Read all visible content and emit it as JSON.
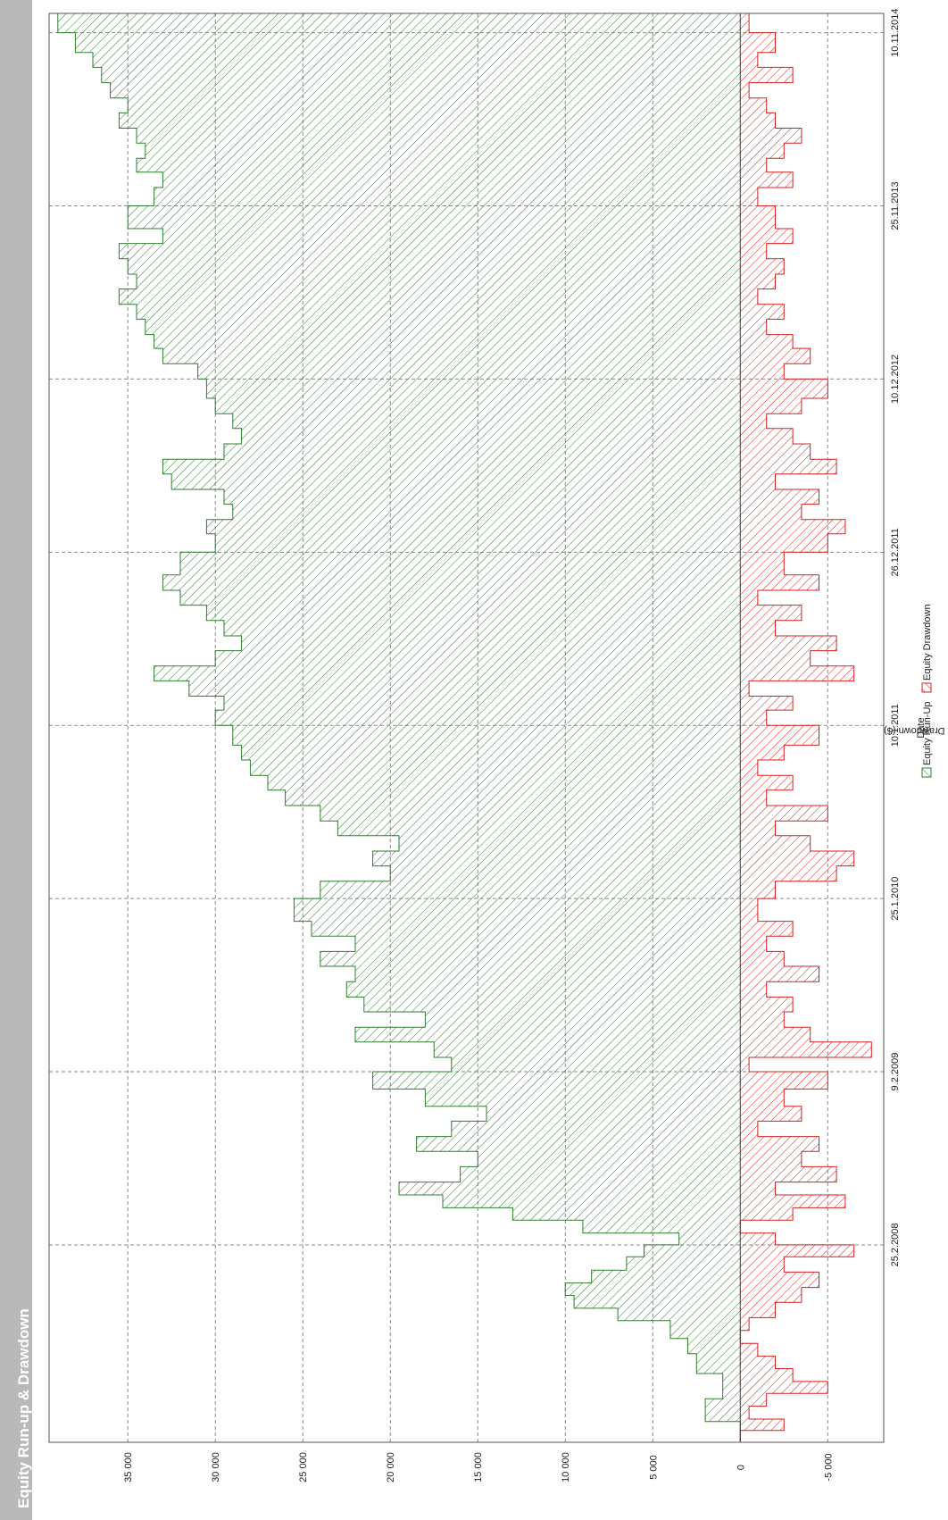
{
  "header": {
    "title": "Equity Run-up & Drawdown"
  },
  "chart_data": {
    "type": "area",
    "title": "Equity Run-up & Drawdown",
    "xlabel": "Date",
    "ylabel": "Run-Up & Drawdown ($)",
    "ylim": [
      -8200,
      39500
    ],
    "yticks": [
      -5000,
      0,
      5000,
      10000,
      15000,
      20000,
      25000,
      30000,
      35000
    ],
    "ytick_labels": [
      "-5 000",
      "0",
      "5 000",
      "10 000",
      "15 000",
      "20 000",
      "25 000",
      "30 000",
      "35 000"
    ],
    "xlim": [
      "2007-01-22",
      "2014-12-19"
    ],
    "xticks": [
      "2008-02-25",
      "2009-02-09",
      "2010-01-25",
      "2011-01-10",
      "2011-12-26",
      "2012-12-10",
      "2013-11-25",
      "2014-11-10"
    ],
    "xtick_labels": [
      "25.2.2008",
      "9.2.2009",
      "25.1.2010",
      "10.1.2011",
      "26.12.2011",
      "10.12.2012",
      "25.11.2013",
      "10.11.2014"
    ],
    "grid": true,
    "orientation": "rotated-90-ccw",
    "legend": {
      "position": "bottom",
      "entries": [
        "Equity Run-Up",
        "Equity Drawdown"
      ]
    },
    "colors": {
      "runup": "#2e7d2e",
      "drawdown": "#d42020",
      "grid": "#8a8a8a"
    },
    "series": [
      {
        "name": "Equity Run-Up",
        "x": [
          "2007-01-22",
          "2007-03-05",
          "2007-04-20",
          "2007-06-10",
          "2007-07-20",
          "2007-08-20",
          "2007-09-25",
          "2007-10-20",
          "2007-11-15",
          "2007-12-10",
          "2008-01-05",
          "2008-02-01",
          "2008-02-25",
          "2008-03-20",
          "2008-04-15",
          "2008-05-10",
          "2008-06-05",
          "2008-07-01",
          "2008-08-01",
          "2008-09-01",
          "2008-10-01",
          "2008-11-01",
          "2008-12-01",
          "2009-01-05",
          "2009-02-09",
          "2009-03-10",
          "2009-04-10",
          "2009-05-10",
          "2009-06-10",
          "2009-07-10",
          "2009-08-10",
          "2009-09-10",
          "2009-10-10",
          "2009-11-10",
          "2009-12-10",
          "2010-01-25",
          "2010-03-01",
          "2010-04-01",
          "2010-05-01",
          "2010-06-01",
          "2010-07-01",
          "2010-08-01",
          "2010-09-01",
          "2010-10-01",
          "2010-11-01",
          "2010-12-01",
          "2011-01-10",
          "2011-02-10",
          "2011-03-10",
          "2011-04-10",
          "2011-05-10",
          "2011-06-10",
          "2011-07-10",
          "2011-08-10",
          "2011-09-10",
          "2011-10-10",
          "2011-11-10",
          "2011-12-26",
          "2012-02-01",
          "2012-03-01",
          "2012-04-01",
          "2012-05-01",
          "2012-06-01",
          "2012-07-01",
          "2012-08-01",
          "2012-09-01",
          "2012-10-01",
          "2012-11-01",
          "2012-12-10",
          "2013-01-10",
          "2013-02-10",
          "2013-03-10",
          "2013-04-10",
          "2013-05-10",
          "2013-06-10",
          "2013-07-10",
          "2013-08-10",
          "2013-09-10",
          "2013-10-10",
          "2013-11-25",
          "2014-01-01",
          "2014-02-01",
          "2014-03-01",
          "2014-04-01",
          "2014-05-01",
          "2014-06-01",
          "2014-07-01",
          "2014-08-01",
          "2014-09-01",
          "2014-10-01",
          "2014-11-10",
          "2014-12-19"
        ],
        "values": [
          0,
          2000,
          1000,
          2500,
          3000,
          4000,
          7000,
          9500,
          10000,
          8500,
          6500,
          5500,
          3500,
          9000,
          13000,
          17000,
          19500,
          16000,
          15000,
          18500,
          16500,
          14500,
          18000,
          21000,
          16500,
          17500,
          22000,
          18000,
          21500,
          22500,
          22000,
          24000,
          22000,
          24500,
          25500,
          24000,
          20000,
          21000,
          19500,
          23000,
          24000,
          26000,
          27000,
          28000,
          28500,
          29000,
          30000,
          29500,
          31500,
          33500,
          30000,
          28500,
          29500,
          30500,
          32000,
          33000,
          32000,
          30000,
          30500,
          29000,
          29500,
          32500,
          33000,
          29500,
          28500,
          29000,
          30000,
          30500,
          31000,
          33000,
          33500,
          34000,
          34500,
          35500,
          34500,
          35000,
          35500,
          33000,
          35000,
          33500,
          33000,
          34500,
          34000,
          34500,
          35500,
          35000,
          36000,
          36500,
          37000,
          38000,
          39000,
          39500
        ]
      },
      {
        "name": "Equity Drawdown",
        "x": [
          "2007-01-22",
          "2007-02-15",
          "2007-03-10",
          "2007-04-05",
          "2007-05-01",
          "2007-05-25",
          "2007-06-20",
          "2007-07-15",
          "2007-08-10",
          "2007-09-05",
          "2007-10-01",
          "2007-11-01",
          "2007-12-01",
          "2008-01-01",
          "2008-02-01",
          "2008-02-25",
          "2008-03-20",
          "2008-04-15",
          "2008-05-10",
          "2008-06-05",
          "2008-07-01",
          "2008-08-01",
          "2008-09-01",
          "2008-10-01",
          "2008-11-01",
          "2008-12-01",
          "2009-01-05",
          "2009-02-09",
          "2009-03-10",
          "2009-04-10",
          "2009-05-10",
          "2009-06-10",
          "2009-07-10",
          "2009-08-10",
          "2009-09-10",
          "2009-10-10",
          "2009-11-10",
          "2009-12-10",
          "2010-01-25",
          "2010-03-01",
          "2010-04-01",
          "2010-05-01",
          "2010-06-01",
          "2010-07-01",
          "2010-08-01",
          "2010-09-01",
          "2010-10-01",
          "2010-11-01",
          "2010-12-01",
          "2011-01-10",
          "2011-02-10",
          "2011-03-10",
          "2011-04-10",
          "2011-05-10",
          "2011-06-10",
          "2011-07-10",
          "2011-08-10",
          "2011-09-10",
          "2011-10-10",
          "2011-11-10",
          "2011-12-26",
          "2012-02-01",
          "2012-03-01",
          "2012-04-01",
          "2012-05-01",
          "2012-06-01",
          "2012-07-01",
          "2012-08-01",
          "2012-09-01",
          "2012-10-01",
          "2012-11-01",
          "2012-12-10",
          "2013-01-10",
          "2013-02-10",
          "2013-03-10",
          "2013-04-10",
          "2013-05-10",
          "2013-06-10",
          "2013-07-10",
          "2013-08-10",
          "2013-09-10",
          "2013-10-10",
          "2013-11-25",
          "2014-01-01",
          "2014-02-01",
          "2014-03-01",
          "2014-04-01",
          "2014-05-01",
          "2014-06-01",
          "2014-07-01",
          "2014-08-01",
          "2014-09-01",
          "2014-10-01",
          "2014-11-10",
          "2014-12-19"
        ],
        "values": [
          0,
          -2500,
          -500,
          -1500,
          -5000,
          -3000,
          -2000,
          -1000,
          0,
          -500,
          -2000,
          -3500,
          -4500,
          -2500,
          -6500,
          -2000,
          0,
          -3000,
          -6000,
          -2000,
          -5500,
          -3500,
          -4500,
          -1000,
          -3500,
          -2500,
          -5000,
          -500,
          -7500,
          -4000,
          -2500,
          -3000,
          -1500,
          -4500,
          -2500,
          -1500,
          -3000,
          -1000,
          -2000,
          -5500,
          -6500,
          -4000,
          -2000,
          -5000,
          -1500,
          -3000,
          -1000,
          -2500,
          -4500,
          -1500,
          -3000,
          -500,
          -6500,
          -4000,
          -5500,
          -2000,
          -3500,
          -1000,
          -4500,
          -2500,
          -5000,
          -6000,
          -3500,
          -4500,
          -2000,
          -5500,
          -4000,
          -3000,
          -1500,
          -3500,
          -5000,
          -2500,
          -4000,
          -3000,
          -1500,
          -2500,
          -1000,
          -2000,
          -2500,
          -1500,
          -3000,
          -2000,
          -1000,
          -3000,
          -1500,
          -2500,
          -3500,
          -2000,
          -1500,
          -500,
          -3000,
          -1000,
          -2000,
          -500,
          0
        ]
      }
    ]
  }
}
